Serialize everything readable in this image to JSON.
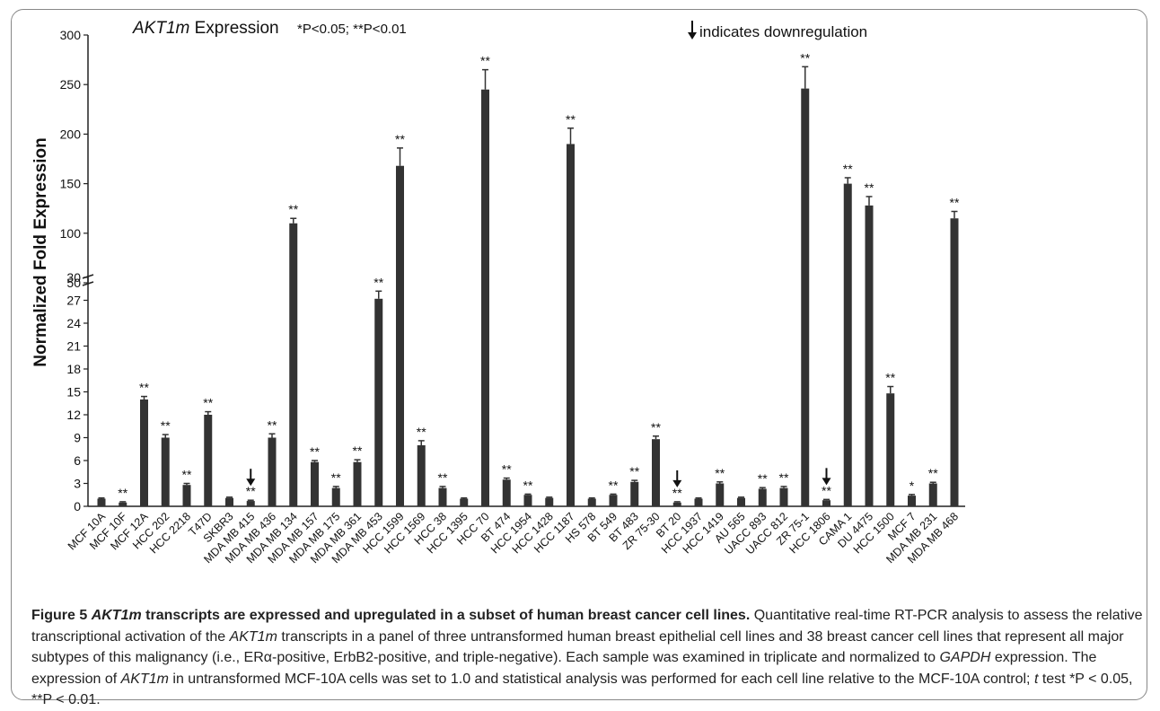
{
  "chart_data": {
    "type": "bar",
    "title_gene": "AKT1m",
    "title_rest": " Expression",
    "significance_note": "*P<0.05; **P<0.01",
    "downregulation_note": "indicates downregulation",
    "ylabel": "Normalized Fold Expression",
    "xlabel": "",
    "axis_break": {
      "lower_range": [
        0,
        30
      ],
      "upper_range": [
        50,
        300
      ]
    },
    "y_ticks_lower": [
      "0",
      "3",
      "6",
      "9",
      "12",
      "15",
      "18",
      "21",
      "24",
      "27",
      "30"
    ],
    "y_ticks_upper": [
      "50",
      "100",
      "150",
      "200",
      "250",
      "300"
    ],
    "grid": false,
    "categories": [
      "MCF 10A",
      "MCF 10F",
      "MCF 12A",
      "HCC 202",
      "HCC 2218",
      "T47D",
      "SKBR3",
      "MDA MB 415",
      "MDA MB 436",
      "MDA MB 134",
      "MDA MB 157",
      "MDA MB 175",
      "MDA MB 361",
      "MDA MB 453",
      "HCC 1599",
      "HCC 1569",
      "HCC 38",
      "HCC 1395",
      "HCC 70",
      "BT 474",
      "HCC 1954",
      "HCC 1428",
      "HCC 1187",
      "HS 578",
      "BT 549",
      "BT 483",
      "ZR 75-30",
      "BT 20",
      "HCC 1937",
      "HCC 1419",
      "AU 565",
      "UACC 893",
      "UACC 812",
      "ZR 75-1",
      "HCC 1806",
      "CAMA 1",
      "DU 4475",
      "HCC 1500",
      "MCF 7",
      "MDA MB 231",
      "MDA MB 468"
    ],
    "values": [
      1.0,
      0.5,
      14,
      9,
      2.8,
      12,
      1.1,
      0.7,
      9,
      110,
      5.8,
      2.4,
      5.8,
      27.2,
      168,
      8,
      2.4,
      1.0,
      245,
      3.5,
      1.5,
      1.1,
      190,
      1.0,
      1.5,
      3.2,
      8.8,
      0.5,
      1.0,
      3.0,
      1.1,
      2.3,
      2.4,
      246,
      0.8,
      150,
      128,
      14.8,
      1.4,
      3.0,
      115
    ],
    "errors": [
      0.1,
      0.1,
      0.4,
      0.4,
      0.2,
      0.4,
      0.1,
      0.1,
      0.5,
      5,
      0.2,
      0.2,
      0.3,
      1.0,
      18,
      0.6,
      0.2,
      0.1,
      20,
      0.2,
      0.1,
      0.1,
      16,
      0.1,
      0.1,
      0.2,
      0.4,
      0.1,
      0.1,
      0.2,
      0.1,
      0.15,
      0.2,
      22,
      0.1,
      6,
      9,
      0.9,
      0.15,
      0.15,
      7
    ],
    "significance": [
      "",
      "**",
      "**",
      "**",
      "**",
      "**",
      "",
      "**",
      "**",
      "**",
      "**",
      "**",
      "**",
      "**",
      "**",
      "**",
      "**",
      "",
      "**",
      "**",
      "**",
      "",
      "**",
      "",
      "**",
      "**",
      "**",
      "**",
      "",
      "**",
      "",
      "**",
      "**",
      "**",
      "**",
      "**",
      "**",
      "**",
      "*",
      "**",
      "**"
    ],
    "downregulated": [
      "MDA MB 415",
      "BT 20",
      "HCC 1806"
    ],
    "colors": {
      "bar": "#333333",
      "axis": "#222222",
      "text": "#111111"
    }
  },
  "caption": {
    "label": "Figure 5",
    "title_gene": "AKT1m",
    "title_rest": " transcripts are expressed and upregulated in a subset of human breast cancer cell lines.",
    "s1": " Quantitative real-time RT-PCR analysis to assess the relative transcriptional activation of the ",
    "gene1": "AKT1m",
    "s2": " transcripts in a panel of three untransformed human breast epithelial cell lines and 38 breast cancer cell lines that represent all major subtypes of this malignancy (i.e., ERα-positive, ErbB2-positive, and triple-negative). Each sample was examined in triplicate and normalized to ",
    "gene2": "GAPDH",
    "s3": " expression. The expression of ",
    "gene3": "AKT1m",
    "s4": " in untransformed MCF-10A cells was set to 1.0 and statistical analysis was performed for each cell line relative to the MCF-10A control; ",
    "t": "t",
    "s5": " test *P < 0.05, **P < 0.01."
  }
}
